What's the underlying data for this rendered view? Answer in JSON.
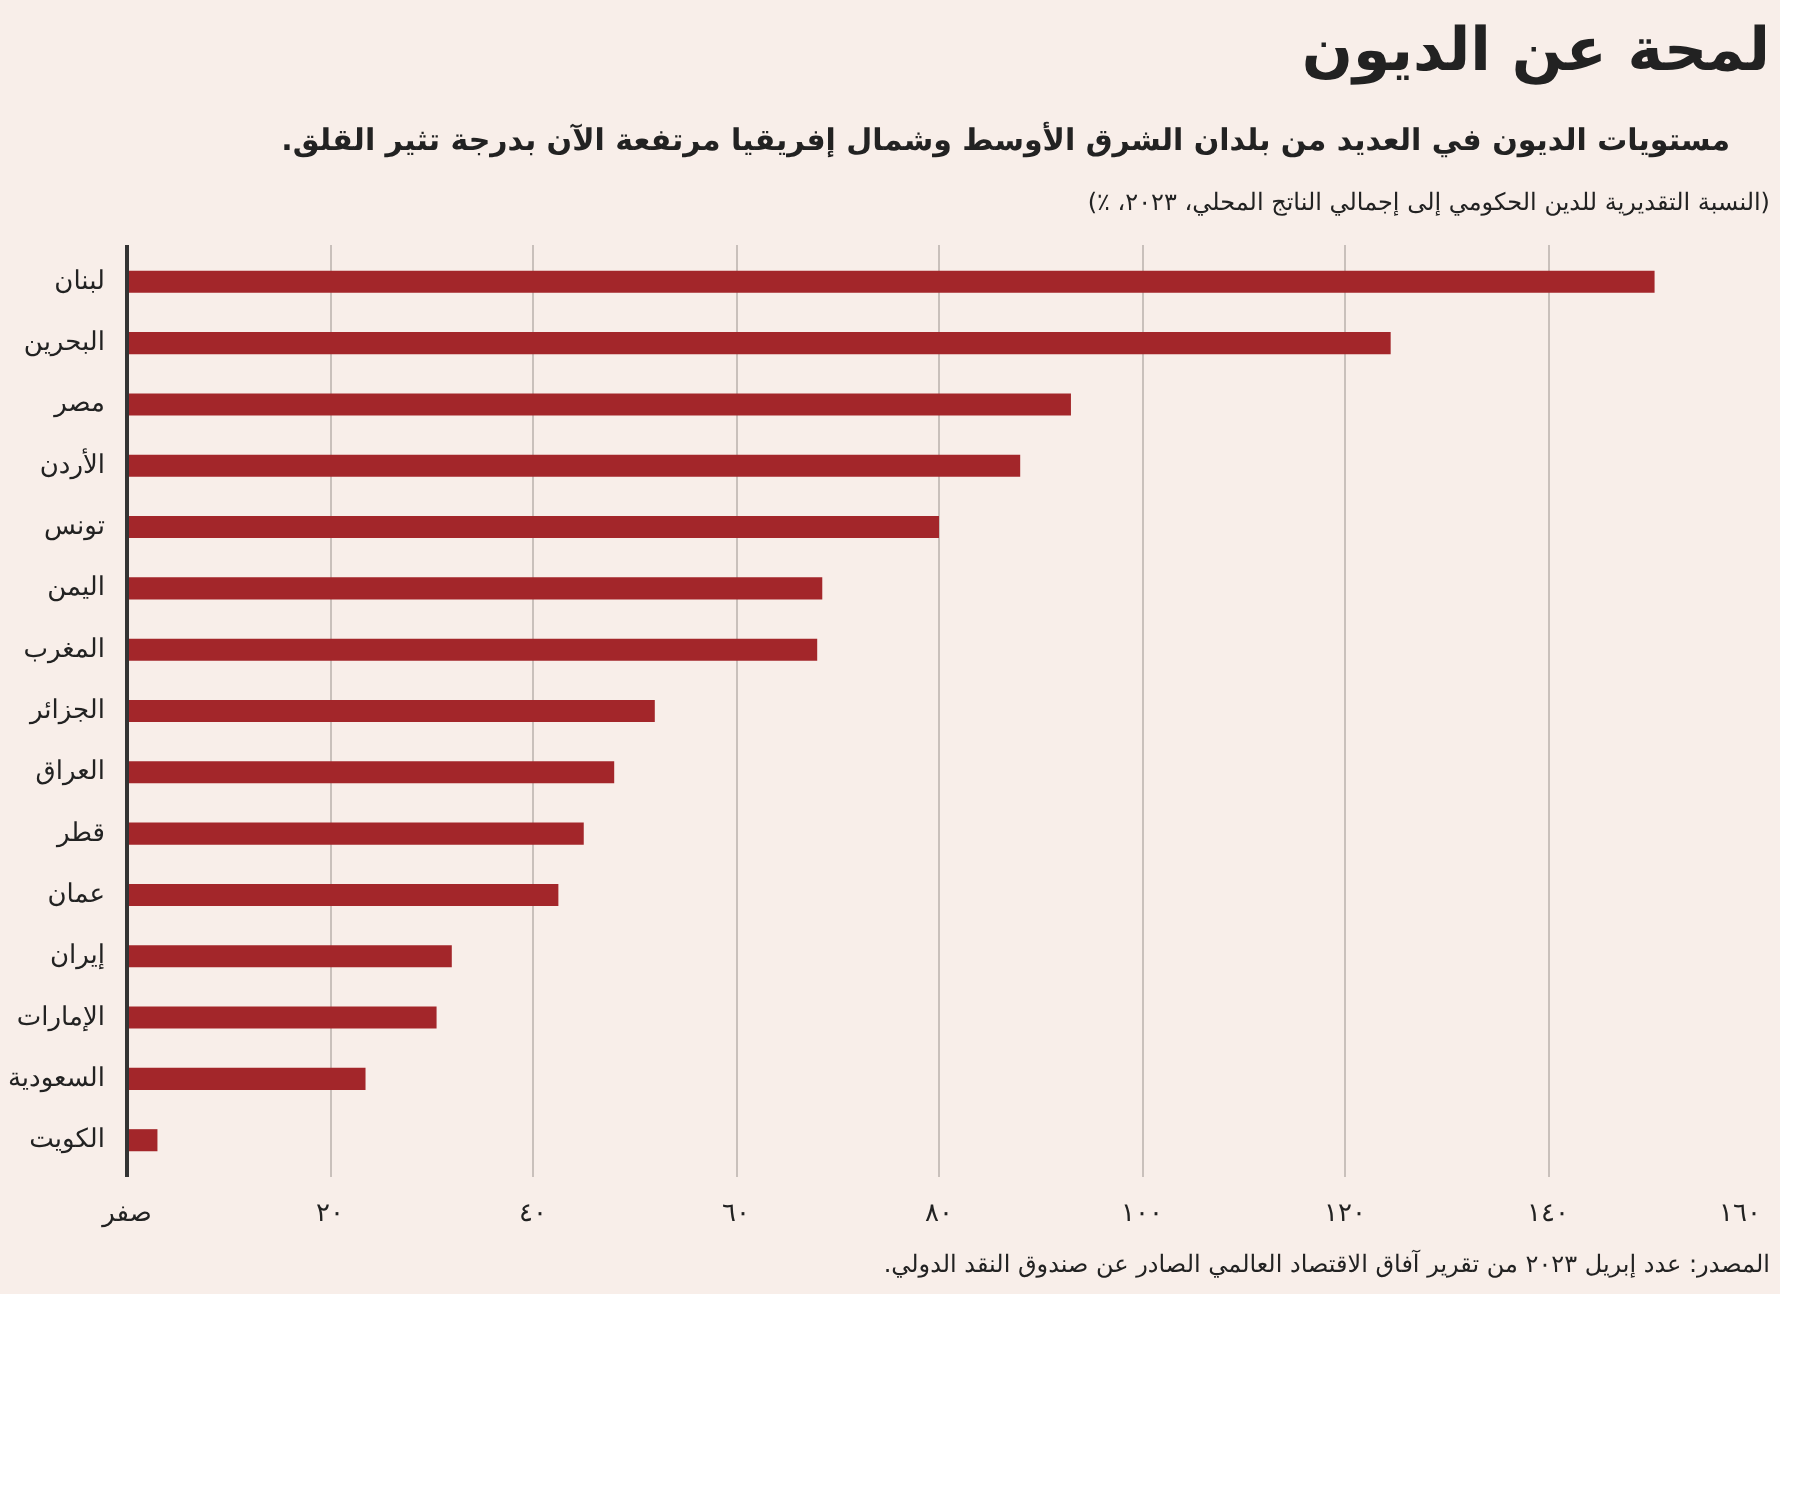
{
  "chart_data": {
    "type": "bar",
    "orientation": "horizontal",
    "title": "لمحة عن الديون",
    "subtitle": "مستويات الديون في العديد من بلدان الشرق الأوسط وشمال إفريقيا مرتفعة الآن بدرجة تثير القلق.",
    "xlabel": "(النسبة التقديرية للدين الحكومي إلى إجمالي الناتج المحلي، ٢٠٢٣، ٪)",
    "categories": [
      "لبنان",
      "البحرين",
      "مصر",
      "الأردن",
      "تونس",
      "اليمن",
      "المغرب",
      "الجزائر",
      "العراق",
      "قطر",
      "عمان",
      "إيران",
      "الإمارات",
      "السعودية",
      "الكويت"
    ],
    "values": [
      150.5,
      124.5,
      93,
      88,
      80,
      68.5,
      68,
      52,
      48,
      45,
      42.5,
      32,
      30.5,
      23.5,
      3
    ],
    "color": "#a3262a",
    "xlim": [
      0,
      160
    ],
    "xticks": [
      {
        "value": 0,
        "label": "صفر"
      },
      {
        "value": 20,
        "label": "٢٠"
      },
      {
        "value": 40,
        "label": "٤٠"
      },
      {
        "value": 60,
        "label": "٦٠"
      },
      {
        "value": 80,
        "label": "٨٠"
      },
      {
        "value": 100,
        "label": "١٠٠"
      },
      {
        "value": 120,
        "label": "١٢٠"
      },
      {
        "value": 140,
        "label": "١٤٠"
      },
      {
        "value": 160,
        "label": "١٦٠"
      }
    ],
    "grid": "x",
    "annotations": [
      "المصدر: عدد إبريل ٢٠٢٣ من تقرير آفاق الاقتصاد العالمي الصادر عن صندوق النقد الدولي."
    ]
  }
}
